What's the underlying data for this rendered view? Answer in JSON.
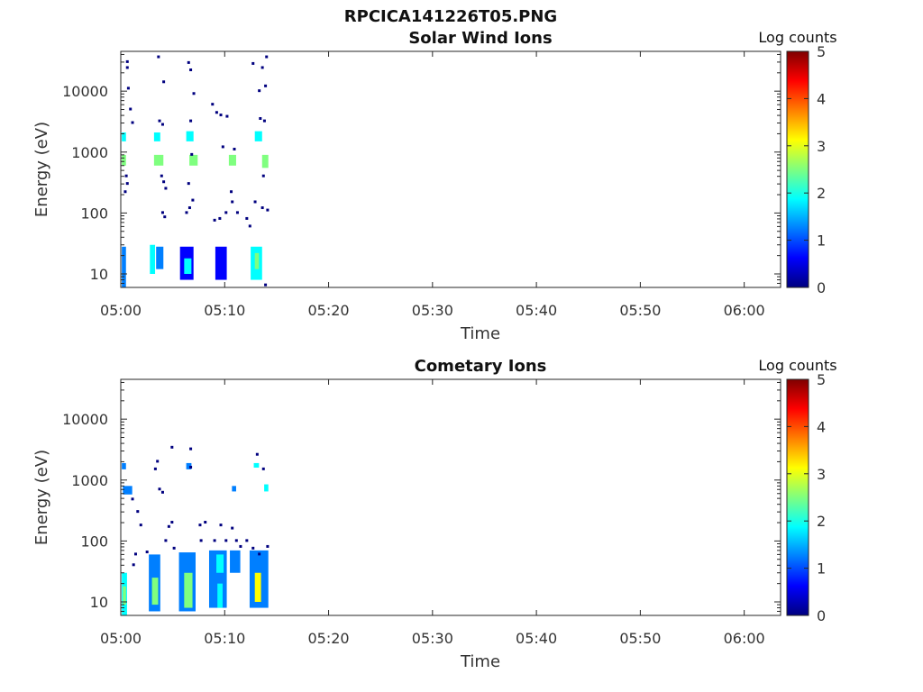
{
  "figure_title": "RPCICA141226T05.PNG",
  "colormap": [
    "#00007f",
    "#0000ff",
    "#007fff",
    "#00ffff",
    "#7fff7f",
    "#ffff00",
    "#ff7f00",
    "#ff0000",
    "#7f0000"
  ],
  "chart_data": [
    {
      "type": "heatmap",
      "title": "Solar Wind Ions",
      "xlabel": "Time",
      "ylabel": "Energy (eV)",
      "x_ticks": [
        "05:00",
        "05:10",
        "05:20",
        "05:30",
        "05:40",
        "05:50",
        "06:00"
      ],
      "x_tick_minutes": [
        0,
        10,
        20,
        30,
        40,
        50,
        60
      ],
      "xlim_minutes": [
        0,
        63.5
      ],
      "y_scale": "log",
      "y_ticks": [
        "10",
        "100",
        "1000",
        "10000"
      ],
      "y_tick_values": [
        10,
        100,
        1000,
        10000
      ],
      "ylim": [
        6,
        45000
      ],
      "colorbar": {
        "label": "Log counts",
        "ticks": [
          "0",
          "1",
          "2",
          "3",
          "4",
          "5"
        ],
        "range": [
          0,
          5
        ]
      },
      "blocks": [
        {
          "t0": 0.1,
          "t1": 0.5,
          "e0": 6,
          "e1": 28,
          "v": 1.3
        },
        {
          "t0": 0.1,
          "t1": 0.5,
          "e0": 600,
          "e1": 900,
          "v": 2.6
        },
        {
          "t0": 0.1,
          "t1": 0.5,
          "e0": 1500,
          "e1": 2100,
          "v": 1.8
        },
        {
          "t0": 2.8,
          "t1": 3.3,
          "e0": 10,
          "e1": 30,
          "v": 2.0
        },
        {
          "t0": 3.4,
          "t1": 4.1,
          "e0": 12,
          "e1": 28,
          "v": 1.1
        },
        {
          "t0": 3.2,
          "t1": 4.1,
          "e0": 600,
          "e1": 900,
          "v": 2.3
        },
        {
          "t0": 3.2,
          "t1": 3.8,
          "e0": 1500,
          "e1": 2100,
          "v": 1.6
        },
        {
          "t0": 5.7,
          "t1": 7.0,
          "e0": 8,
          "e1": 28,
          "v": 0.6
        },
        {
          "t0": 6.1,
          "t1": 6.8,
          "e0": 10,
          "e1": 18,
          "v": 2.0
        },
        {
          "t0": 6.6,
          "t1": 7.4,
          "e0": 600,
          "e1": 900,
          "v": 2.4
        },
        {
          "t0": 6.3,
          "t1": 7.0,
          "e0": 1500,
          "e1": 2200,
          "v": 1.7
        },
        {
          "t0": 9.1,
          "t1": 10.2,
          "e0": 8,
          "e1": 28,
          "v": 0.7
        },
        {
          "t0": 10.4,
          "t1": 11.1,
          "e0": 600,
          "e1": 900,
          "v": 2.5
        },
        {
          "t0": 12.5,
          "t1": 13.6,
          "e0": 8,
          "e1": 28,
          "v": 1.6
        },
        {
          "t0": 12.9,
          "t1": 13.3,
          "e0": 12,
          "e1": 22,
          "v": 2.8
        },
        {
          "t0": 13.6,
          "t1": 14.2,
          "e0": 550,
          "e1": 900,
          "v": 2.4
        },
        {
          "t0": 12.9,
          "t1": 13.6,
          "e0": 1500,
          "e1": 2200,
          "v": 2.1
        }
      ],
      "dots": [
        [
          0.5,
          30000
        ],
        [
          0.5,
          24000
        ],
        [
          0.6,
          11000
        ],
        [
          0.8,
          5000
        ],
        [
          1.0,
          3000
        ],
        [
          0.4,
          400
        ],
        [
          0.5,
          300
        ],
        [
          0.3,
          220
        ],
        [
          3.5,
          36000
        ],
        [
          4.0,
          14000
        ],
        [
          3.6,
          3200
        ],
        [
          3.9,
          2800
        ],
        [
          3.8,
          400
        ],
        [
          4.0,
          320
        ],
        [
          4.2,
          250
        ],
        [
          3.9,
          100
        ],
        [
          4.1,
          85
        ],
        [
          6.4,
          29000
        ],
        [
          6.6,
          22000
        ],
        [
          6.9,
          9000
        ],
        [
          6.6,
          3200
        ],
        [
          6.7,
          900
        ],
        [
          6.4,
          300
        ],
        [
          6.8,
          160
        ],
        [
          6.5,
          120
        ],
        [
          6.2,
          100
        ],
        [
          8.7,
          6000
        ],
        [
          9.1,
          4400
        ],
        [
          9.5,
          4000
        ],
        [
          9.7,
          1200
        ],
        [
          10.1,
          3800
        ],
        [
          10.8,
          1100
        ],
        [
          10.6,
          150
        ],
        [
          10.0,
          100
        ],
        [
          9.4,
          80
        ],
        [
          8.9,
          75
        ],
        [
          11.1,
          100
        ],
        [
          10.5,
          220
        ],
        [
          12.0,
          80
        ],
        [
          12.3,
          60
        ],
        [
          12.8,
          150
        ],
        [
          13.6,
          400
        ],
        [
          12.6,
          28000
        ],
        [
          13.5,
          24000
        ],
        [
          13.9,
          36000
        ],
        [
          13.2,
          10000
        ],
        [
          13.8,
          12000
        ],
        [
          13.3,
          3500
        ],
        [
          13.7,
          3200
        ],
        [
          13.5,
          120
        ],
        [
          14.0,
          110
        ],
        [
          13.8,
          6.5
        ]
      ]
    },
    {
      "type": "heatmap",
      "title": "Cometary Ions",
      "xlabel": "Time",
      "ylabel": "Energy (eV)",
      "x_ticks": [
        "05:00",
        "05:10",
        "05:20",
        "05:30",
        "05:40",
        "05:50",
        "06:00"
      ],
      "x_tick_minutes": [
        0,
        10,
        20,
        30,
        40,
        50,
        60
      ],
      "xlim_minutes": [
        0,
        63.5
      ],
      "y_scale": "log",
      "y_ticks": [
        "10",
        "100",
        "1000",
        "10000"
      ],
      "y_tick_values": [
        10,
        100,
        1000,
        10000
      ],
      "ylim": [
        6,
        45000
      ],
      "colorbar": {
        "label": "Log counts",
        "ticks": [
          "0",
          "1",
          "2",
          "3",
          "4",
          "5"
        ],
        "range": [
          0,
          5
        ]
      },
      "blocks": [
        {
          "t0": 0.1,
          "t1": 0.6,
          "e0": 6,
          "e1": 30,
          "v": 1.8
        },
        {
          "t0": 0.2,
          "t1": 0.5,
          "e0": 9,
          "e1": 18,
          "v": 2.8
        },
        {
          "t0": 0.2,
          "t1": 1.1,
          "e0": 580,
          "e1": 800,
          "v": 1.5
        },
        {
          "t0": 0.1,
          "t1": 0.5,
          "e0": 1500,
          "e1": 1900,
          "v": 1.0
        },
        {
          "t0": 2.7,
          "t1": 3.8,
          "e0": 7,
          "e1": 60,
          "v": 1.3
        },
        {
          "t0": 3.0,
          "t1": 3.6,
          "e0": 9,
          "e1": 25,
          "v": 2.5
        },
        {
          "t0": 5.6,
          "t1": 7.2,
          "e0": 7,
          "e1": 65,
          "v": 1.2
        },
        {
          "t0": 6.1,
          "t1": 6.9,
          "e0": 8,
          "e1": 30,
          "v": 2.2
        },
        {
          "t0": 6.3,
          "t1": 6.8,
          "e0": 1500,
          "e1": 1900,
          "v": 1.4
        },
        {
          "t0": 8.5,
          "t1": 10.2,
          "e0": 8,
          "e1": 70,
          "v": 1.0
        },
        {
          "t0": 9.2,
          "t1": 9.9,
          "e0": 30,
          "e1": 60,
          "v": 2.1
        },
        {
          "t0": 9.3,
          "t1": 9.8,
          "e0": 8,
          "e1": 20,
          "v": 1.8
        },
        {
          "t0": 10.5,
          "t1": 11.5,
          "e0": 30,
          "e1": 70,
          "v": 1.3
        },
        {
          "t0": 12.4,
          "t1": 14.2,
          "e0": 8,
          "e1": 70,
          "v": 1.3
        },
        {
          "t0": 12.9,
          "t1": 13.5,
          "e0": 10,
          "e1": 30,
          "v": 2.9
        },
        {
          "t0": 13.8,
          "t1": 14.2,
          "e0": 650,
          "e1": 850,
          "v": 1.6
        },
        {
          "t0": 10.7,
          "t1": 11.1,
          "e0": 650,
          "e1": 800,
          "v": 1.5
        },
        {
          "t0": 12.8,
          "t1": 13.3,
          "e0": 1600,
          "e1": 1900,
          "v": 1.8
        }
      ],
      "dots": [
        [
          1.0,
          480
        ],
        [
          1.5,
          300
        ],
        [
          1.8,
          180
        ],
        [
          1.3,
          60
        ],
        [
          1.1,
          40
        ],
        [
          3.4,
          2000
        ],
        [
          3.2,
          1500
        ],
        [
          3.6,
          700
        ],
        [
          3.9,
          620
        ],
        [
          4.5,
          170
        ],
        [
          4.8,
          200
        ],
        [
          4.2,
          100
        ],
        [
          4.8,
          3400
        ],
        [
          6.6,
          3200
        ],
        [
          6.6,
          1600
        ],
        [
          7.5,
          180
        ],
        [
          8.0,
          200
        ],
        [
          7.6,
          100
        ],
        [
          8.9,
          100
        ],
        [
          9.5,
          180
        ],
        [
          10.0,
          100
        ],
        [
          10.6,
          160
        ],
        [
          11.0,
          100
        ],
        [
          11.4,
          80
        ],
        [
          12.0,
          100
        ],
        [
          12.6,
          75
        ],
        [
          13.0,
          2600
        ],
        [
          13.6,
          1500
        ],
        [
          14.0,
          80
        ],
        [
          13.2,
          60
        ],
        [
          5.0,
          75
        ],
        [
          2.4,
          65
        ]
      ]
    }
  ]
}
